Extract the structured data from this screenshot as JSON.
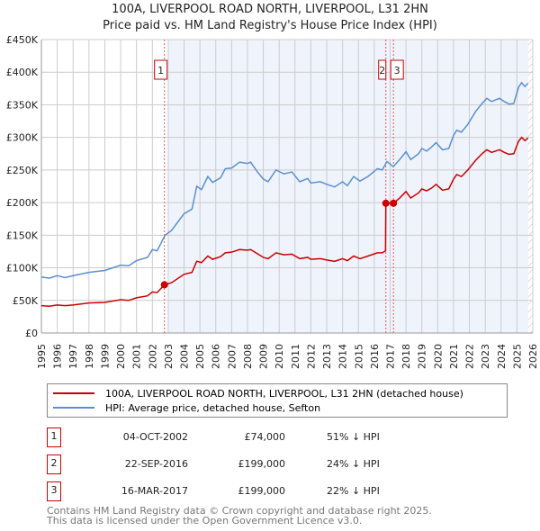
{
  "chart_data": {
    "type": "line",
    "title": "100A, LIVERPOOL ROAD NORTH, LIVERPOOL, L31 2HN",
    "subtitle": "Price paid vs. HM Land Registry's House Price Index (HPI)",
    "xlim": [
      1995,
      2026
    ],
    "ylim": [
      0,
      450000
    ],
    "x_ticks": [
      "1995",
      "1996",
      "1997",
      "1998",
      "1999",
      "2000",
      "2001",
      "2002",
      "2003",
      "2004",
      "2005",
      "2006",
      "2007",
      "2008",
      "2009",
      "2010",
      "2011",
      "2012",
      "2013",
      "2014",
      "2015",
      "2016",
      "2017",
      "2018",
      "2019",
      "2020",
      "2021",
      "2022",
      "2023",
      "2024",
      "2025",
      "2026"
    ],
    "y_ticks": [
      {
        "v": 0,
        "label": "£0"
      },
      {
        "v": 50000,
        "label": "£50K"
      },
      {
        "v": 100000,
        "label": "£100K"
      },
      {
        "v": 150000,
        "label": "£150K"
      },
      {
        "v": 200000,
        "label": "£200K"
      },
      {
        "v": 250000,
        "label": "£250K"
      },
      {
        "v": 300000,
        "label": "£300K"
      },
      {
        "v": 350000,
        "label": "£350K"
      },
      {
        "v": 400000,
        "label": "£400K"
      },
      {
        "v": 450000,
        "label": "£450K"
      }
    ],
    "grid": true,
    "shaded_from": 2003.0,
    "hatched_from": 2025.7,
    "series": [
      {
        "name": "100A, LIVERPOOL ROAD NORTH, LIVERPOOL, L31 2HN (detached house)",
        "color": "#cc0000",
        "x": [
          1995,
          1995.5,
          1996,
          1996.5,
          1997,
          1998,
          1999,
          2000,
          2000.5,
          2001,
          2001.7,
          2002,
          2002.3,
          2002.76,
          2003.2,
          2004,
          2004.5,
          2004.8,
          2005.1,
          2005.5,
          2005.8,
          2006.3,
          2006.6,
          2007,
          2007.5,
          2008,
          2008.2,
          2008.6,
          2009,
          2009.3,
          2009.8,
          2010.3,
          2010.8,
          2011.3,
          2011.8,
          2012,
          2012.6,
          2013,
          2013.5,
          2014,
          2014.3,
          2014.7,
          2015.1,
          2015.6,
          2016.2,
          2016.5,
          2016.71,
          2016.73,
          2017.21,
          2017.6,
          2018,
          2018.3,
          2018.8,
          2019,
          2019.3,
          2019.6,
          2019.9,
          2020.3,
          2020.7,
          2021,
          2021.2,
          2021.5,
          2021.9,
          2022.4,
          2022.8,
          2023.1,
          2023.4,
          2023.9,
          2024.2,
          2024.5,
          2024.8,
          2025.1,
          2025.3,
          2025.5,
          2025.7
        ],
        "y": [
          42,
          41,
          43,
          42,
          43,
          46,
          47,
          51,
          50,
          54,
          57,
          63,
          62,
          74,
          77,
          90,
          93,
          110,
          108,
          118,
          113,
          117,
          123,
          124,
          128,
          127,
          128,
          122,
          116,
          114,
          123,
          120,
          121,
          114,
          116,
          113,
          114,
          112,
          110,
          114,
          111,
          118,
          114,
          118,
          123,
          123,
          126,
          199,
          199,
          207,
          217,
          207,
          215,
          221,
          218,
          222,
          228,
          219,
          221,
          236,
          243,
          240,
          250,
          265,
          275,
          281,
          277,
          281,
          277,
          274,
          275,
          294,
          300,
          295,
          299
        ]
      },
      {
        "name": "HPI: Average price, detached house, Sefton",
        "color": "#5b8fd0",
        "x": [
          1995,
          1995.5,
          1996,
          1996.5,
          1997,
          1998,
          1999,
          2000,
          2000.5,
          2001,
          2001.7,
          2002,
          2002.3,
          2002.8,
          2003.2,
          2004,
          2004.5,
          2004.8,
          2005.1,
          2005.5,
          2005.8,
          2006.3,
          2006.6,
          2007,
          2007.5,
          2008,
          2008.2,
          2008.6,
          2009,
          2009.3,
          2009.8,
          2010.3,
          2010.8,
          2011.3,
          2011.8,
          2012,
          2012.6,
          2013,
          2013.5,
          2014,
          2014.3,
          2014.7,
          2015.1,
          2015.6,
          2016.2,
          2016.5,
          2016.8,
          2017.2,
          2017.6,
          2018,
          2018.3,
          2018.8,
          2019,
          2019.3,
          2019.6,
          2019.9,
          2020.3,
          2020.7,
          2021,
          2021.2,
          2021.5,
          2021.9,
          2022.4,
          2022.8,
          2023.1,
          2023.4,
          2023.9,
          2024.2,
          2024.5,
          2024.8,
          2025.1,
          2025.3,
          2025.5,
          2025.7
        ],
        "y": [
          86,
          84,
          88,
          85,
          88,
          93,
          96,
          104,
          103,
          111,
          116,
          128,
          126,
          150,
          157,
          183,
          190,
          225,
          220,
          240,
          231,
          238,
          252,
          253,
          262,
          260,
          262,
          248,
          236,
          232,
          250,
          244,
          247,
          232,
          237,
          230,
          232,
          228,
          224,
          232,
          226,
          240,
          233,
          240,
          252,
          250,
          263,
          255,
          266,
          278,
          266,
          275,
          283,
          279,
          285,
          292,
          281,
          283,
          303,
          311,
          308,
          320,
          340,
          352,
          360,
          355,
          360,
          355,
          351,
          352,
          377,
          384,
          378,
          383
        ]
      }
    ],
    "y_unit": "thousands GBP",
    "sales": [
      {
        "id": "1",
        "x": 2002.76,
        "price": 74000,
        "date": "04-OCT-2002",
        "price_label": "£74,000",
        "delta": "51% ↓ HPI"
      },
      {
        "id": "2",
        "x": 2016.73,
        "price": 199000,
        "date": "22-SEP-2016",
        "price_label": "£199,000",
        "delta": "24% ↓ HPI"
      },
      {
        "id": "3",
        "x": 2017.21,
        "price": 199000,
        "date": "16-MAR-2017",
        "price_label": "£199,000",
        "delta": "22% ↓ HPI"
      }
    ]
  },
  "footer": {
    "line1": "Contains HM Land Registry data © Crown copyright and database right 2025.",
    "line2": "This data is licensed under the Open Government Licence v3.0."
  }
}
